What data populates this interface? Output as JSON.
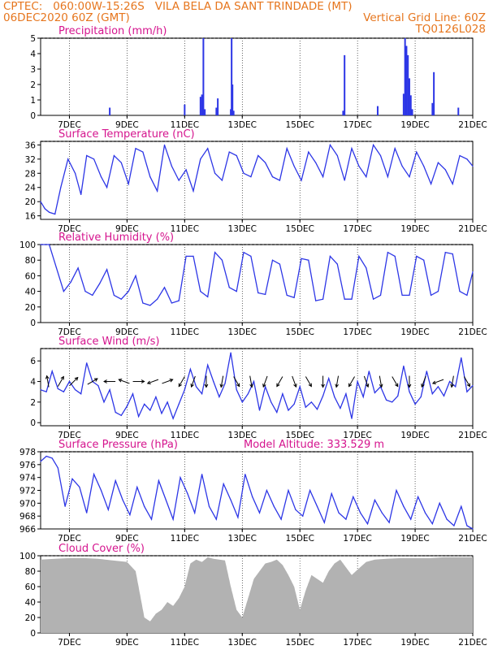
{
  "header": {
    "line1_left": "CPTEC:   060:00W-15:26S   VILA BELA DA SANT TRINDADE (MT)",
    "line2_left": "06DEC2020 60Z (GMT)",
    "line2_right": "Vertical Grid Line: 60Z",
    "line3_right": "TQ0126L028"
  },
  "colors": {
    "header": "#e6761e",
    "title": "#d5148e",
    "line": "#2d36e6",
    "cloud": "#aaaaaa",
    "arrow": "#000000"
  },
  "x_axis": {
    "start_day": 6,
    "end_day": 21,
    "tick_days": [
      7,
      9,
      11,
      13,
      15,
      17,
      19,
      21
    ],
    "tick_labels": [
      "7DEC",
      "9DEC",
      "11DEC",
      "13DEC",
      "15DEC",
      "17DEC",
      "19DEC",
      "21DEC"
    ]
  },
  "chart_data": [
    {
      "id": "precip",
      "type": "bar",
      "title": "Precipitation (mm/h)",
      "ylim": [
        0,
        5
      ],
      "yticks": [
        0,
        1,
        2,
        3,
        4,
        5
      ],
      "x": [
        8.4,
        11.0,
        11.55,
        11.6,
        11.65,
        11.7,
        12.1,
        12.15,
        12.6,
        12.63,
        12.66,
        12.7,
        16.5,
        16.55,
        17.7,
        18.6,
        18.65,
        18.7,
        18.75,
        18.8,
        18.85,
        18.9,
        19.6,
        19.65,
        20.5
      ],
      "values": [
        0.5,
        0.7,
        1.2,
        1.35,
        5.0,
        0.4,
        0.5,
        1.1,
        0.4,
        5.0,
        2.0,
        0.3,
        0.3,
        3.9,
        0.6,
        1.4,
        5.0,
        4.5,
        3.9,
        2.4,
        1.3,
        0.4,
        0.8,
        2.8,
        0.5
      ]
    },
    {
      "id": "temp",
      "type": "line",
      "title": "Surface Temperature (nC)",
      "ylim": [
        15,
        37
      ],
      "yticks": [
        16,
        20,
        24,
        28,
        32,
        36
      ],
      "x": [
        6.0,
        6.15,
        6.3,
        6.5,
        6.7,
        6.95,
        7.2,
        7.4,
        7.6,
        7.85,
        8.1,
        8.3,
        8.55,
        8.8,
        9.05,
        9.3,
        9.55,
        9.8,
        10.05,
        10.3,
        10.55,
        10.8,
        11.05,
        11.3,
        11.55,
        11.8,
        12.05,
        12.3,
        12.55,
        12.8,
        13.05,
        13.3,
        13.55,
        13.8,
        14.05,
        14.3,
        14.55,
        14.8,
        15.05,
        15.3,
        15.55,
        15.8,
        16.05,
        16.3,
        16.55,
        16.8,
        17.05,
        17.3,
        17.55,
        17.8,
        18.05,
        18.3,
        18.55,
        18.8,
        19.05,
        19.3,
        19.55,
        19.8,
        20.05,
        20.3,
        20.55,
        20.8,
        21.0
      ],
      "values": [
        20,
        18,
        17,
        16.5,
        24,
        32,
        28,
        22,
        33,
        32,
        27,
        24,
        33,
        31,
        25,
        35,
        34,
        27,
        23,
        36,
        30,
        26,
        29,
        23,
        32,
        35,
        28,
        26,
        34,
        33,
        28,
        27,
        33,
        31,
        27,
        26,
        35,
        30,
        26,
        34,
        31,
        27,
        36,
        33,
        26,
        35,
        30,
        27,
        36,
        33,
        27,
        35,
        30,
        27,
        34,
        30,
        25,
        31,
        29,
        25,
        33,
        32,
        30
      ]
    },
    {
      "id": "rh",
      "type": "line",
      "title": "Relative Humidity (%)",
      "ylim": [
        0,
        100
      ],
      "yticks": [
        0,
        20,
        40,
        60,
        80,
        100
      ],
      "x": [
        6.0,
        6.3,
        6.55,
        6.8,
        7.05,
        7.3,
        7.55,
        7.8,
        8.05,
        8.3,
        8.55,
        8.8,
        9.05,
        9.3,
        9.55,
        9.8,
        10.05,
        10.3,
        10.55,
        10.8,
        11.05,
        11.3,
        11.55,
        11.8,
        12.05,
        12.3,
        12.55,
        12.8,
        13.05,
        13.3,
        13.55,
        13.8,
        14.05,
        14.3,
        14.55,
        14.8,
        15.05,
        15.3,
        15.55,
        15.8,
        16.05,
        16.3,
        16.55,
        16.8,
        17.05,
        17.3,
        17.55,
        17.8,
        18.05,
        18.3,
        18.55,
        18.8,
        19.05,
        19.3,
        19.55,
        19.8,
        20.05,
        20.3,
        20.55,
        20.8,
        21.0
      ],
      "values": [
        100,
        100,
        70,
        40,
        52,
        70,
        40,
        35,
        50,
        68,
        35,
        30,
        40,
        60,
        25,
        22,
        30,
        45,
        25,
        28,
        85,
        85,
        40,
        33,
        90,
        80,
        45,
        40,
        90,
        85,
        38,
        36,
        80,
        75,
        35,
        32,
        82,
        80,
        28,
        30,
        85,
        75,
        30,
        30,
        85,
        70,
        30,
        35,
        90,
        85,
        35,
        35,
        85,
        80,
        35,
        40,
        90,
        88,
        40,
        35,
        65
      ]
    },
    {
      "id": "wind",
      "type": "line",
      "title": "Surface Wind (m/s)",
      "ylim": [
        -0.3,
        7.2
      ],
      "yticks": [
        0,
        2,
        4,
        6
      ],
      "x": [
        6.0,
        6.2,
        6.4,
        6.6,
        6.8,
        7.0,
        7.2,
        7.4,
        7.6,
        7.8,
        8.0,
        8.2,
        8.4,
        8.6,
        8.8,
        9.0,
        9.2,
        9.4,
        9.6,
        9.8,
        10.0,
        10.2,
        10.4,
        10.6,
        10.8,
        11.0,
        11.2,
        11.4,
        11.6,
        11.8,
        12.0,
        12.2,
        12.4,
        12.6,
        12.8,
        13.0,
        13.2,
        13.4,
        13.6,
        13.8,
        14.0,
        14.2,
        14.4,
        14.6,
        14.8,
        15.0,
        15.2,
        15.4,
        15.6,
        15.8,
        16.0,
        16.2,
        16.4,
        16.6,
        16.8,
        17.0,
        17.2,
        17.4,
        17.6,
        17.8,
        18.0,
        18.2,
        18.4,
        18.6,
        18.8,
        19.0,
        19.2,
        19.4,
        19.6,
        19.8,
        20.0,
        20.2,
        20.4,
        20.6,
        20.8,
        21.0
      ],
      "values": [
        3.2,
        3.0,
        5.0,
        3.3,
        3.0,
        4.0,
        3.2,
        2.8,
        5.8,
        4.0,
        3.6,
        2.0,
        3.2,
        1.0,
        0.7,
        1.6,
        2.8,
        0.6,
        1.8,
        1.2,
        2.5,
        0.9,
        2.0,
        0.4,
        1.8,
        3.2,
        5.2,
        3.5,
        2.8,
        5.6,
        4.0,
        2.5,
        3.8,
        6.8,
        3.2,
        2.0,
        2.8,
        4.0,
        1.2,
        3.5,
        2.0,
        1.0,
        2.8,
        1.2,
        1.8,
        3.5,
        1.5,
        2.0,
        1.3,
        2.6,
        4.3,
        2.5,
        1.4,
        2.8,
        0.4,
        4.0,
        2.5,
        5.0,
        2.9,
        3.5,
        2.2,
        2.0,
        2.6,
        5.5,
        3.0,
        1.8,
        2.5,
        5.0,
        2.8,
        3.5,
        2.6,
        4.0,
        3.5,
        6.3,
        3.0,
        3.6
      ]
    },
    {
      "id": "press",
      "type": "line",
      "title": "Surface Pressure (hPa)",
      "ylim": [
        966,
        978
      ],
      "yticks": [
        966,
        968,
        970,
        972,
        974,
        976,
        978
      ],
      "x": [
        6.0,
        6.2,
        6.4,
        6.6,
        6.85,
        7.1,
        7.35,
        7.6,
        7.85,
        8.1,
        8.35,
        8.6,
        8.85,
        9.1,
        9.35,
        9.6,
        9.85,
        10.1,
        10.35,
        10.6,
        10.85,
        11.1,
        11.35,
        11.6,
        11.85,
        12.1,
        12.35,
        12.6,
        12.85,
        13.1,
        13.35,
        13.6,
        13.85,
        14.1,
        14.35,
        14.6,
        14.85,
        15.1,
        15.35,
        15.6,
        15.85,
        16.1,
        16.35,
        16.6,
        16.85,
        17.1,
        17.35,
        17.6,
        17.85,
        18.1,
        18.35,
        18.6,
        18.85,
        19.1,
        19.35,
        19.6,
        19.85,
        20.1,
        20.35,
        20.6,
        20.8,
        21.0
      ],
      "values": [
        976.5,
        977.3,
        977.0,
        975.5,
        969.5,
        973.8,
        972.5,
        968.5,
        974.5,
        972.0,
        969.0,
        973.5,
        970.5,
        968.2,
        972.5,
        969.5,
        967.5,
        973.5,
        970.5,
        967.5,
        974.0,
        971.5,
        968.5,
        974.5,
        969.5,
        967.5,
        973.0,
        970.5,
        967.8,
        974.5,
        971.0,
        968.5,
        972.0,
        969.5,
        967.5,
        972.0,
        969.0,
        968.0,
        972.0,
        969.5,
        967.0,
        971.5,
        968.5,
        967.5,
        971.0,
        968.5,
        966.8,
        970.5,
        968.5,
        967.0,
        972.0,
        969.5,
        967.5,
        971.0,
        968.5,
        966.8,
        970.0,
        967.5,
        966.5,
        969.5,
        966.5,
        966.0
      ]
    },
    {
      "id": "cloud",
      "type": "area",
      "title": "Cloud Cover (%)",
      "ylim": [
        0,
        100
      ],
      "yticks": [
        0,
        20,
        40,
        60,
        80,
        100
      ],
      "x": [
        6.0,
        6.5,
        7.0,
        7.5,
        8.0,
        8.5,
        9.0,
        9.3,
        9.6,
        9.8,
        10.0,
        10.2,
        10.4,
        10.6,
        10.8,
        11.0,
        11.2,
        11.4,
        11.6,
        11.8,
        12.0,
        12.2,
        12.4,
        12.6,
        12.8,
        13.0,
        13.2,
        13.4,
        13.6,
        13.8,
        14.0,
        14.2,
        14.4,
        14.6,
        14.8,
        15.0,
        15.2,
        15.4,
        15.6,
        15.8,
        16.0,
        16.2,
        16.4,
        16.6,
        16.8,
        17.0,
        17.3,
        17.6,
        18.0,
        18.5,
        19.0,
        19.5,
        20.0,
        20.5,
        21.0
      ],
      "values": [
        95,
        96,
        97,
        97,
        96,
        94,
        92,
        80,
        20,
        15,
        25,
        30,
        40,
        35,
        45,
        60,
        90,
        95,
        92,
        98,
        96,
        95,
        94,
        60,
        30,
        20,
        45,
        70,
        80,
        90,
        92,
        95,
        88,
        75,
        60,
        30,
        55,
        75,
        70,
        65,
        80,
        90,
        95,
        85,
        75,
        82,
        92,
        95,
        96,
        97,
        97,
        97,
        98,
        98,
        98
      ]
    }
  ],
  "wind_vectors": {
    "x": [
      6.25,
      6.7,
      7.15,
      7.8,
      8.4,
      8.9,
      9.4,
      9.9,
      10.4,
      10.9,
      11.3,
      11.75,
      12.3,
      12.8,
      13.3,
      13.8,
      14.3,
      14.8,
      15.3,
      15.8,
      16.3,
      16.8,
      17.3,
      17.8,
      18.3,
      18.8,
      19.3,
      19.8,
      20.3,
      20.8
    ],
    "angle_deg": [
      100,
      60,
      45,
      30,
      180,
      160,
      0,
      200,
      20,
      240,
      250,
      270,
      260,
      300,
      280,
      250,
      240,
      290,
      300,
      270,
      260,
      240,
      290,
      280,
      300,
      270,
      250,
      200,
      260,
      300
    ]
  },
  "model_altitude": {
    "label": "Model Altitude:",
    "value": "333.529 m"
  }
}
